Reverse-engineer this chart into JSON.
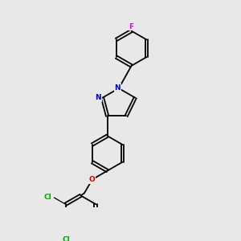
{
  "background_color": "#e8e8e8",
  "bond_color": "#000000",
  "atom_colors": {
    "N": "#0000cc",
    "O": "#cc0000",
    "F": "#ee00ee",
    "Cl": "#00aa00"
  },
  "figsize": [
    3.0,
    3.0
  ],
  "dpi": 100
}
